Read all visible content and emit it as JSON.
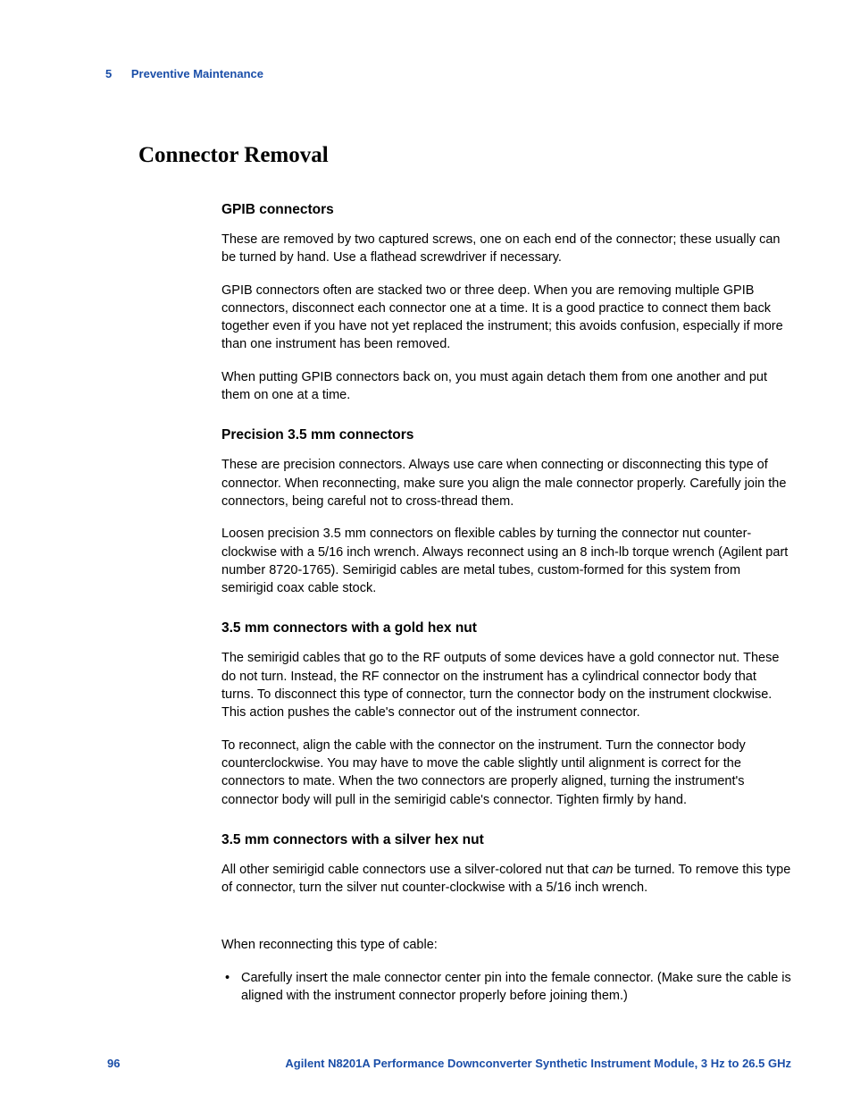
{
  "header": {
    "chapter_number": "5",
    "chapter_title": "Preventive Maintenance"
  },
  "title": "Connector Removal",
  "sections": {
    "gpib": {
      "heading": "GPIB connectors",
      "p1": "These are removed by two captured screws, one on each end of the connector; these usually can be turned by hand. Use a flathead screwdriver if necessary.",
      "p2": "GPIB connectors often are stacked two or three deep. When you are removing multiple GPIB connectors, disconnect each connector one at a time. It is a good practice to connect them back together even if you have not yet replaced the instrument; this avoids confusion, especially if more than one instrument has been removed.",
      "p3": "When putting GPIB connectors back on, you must again detach them from one another and put them on one at a time."
    },
    "precision": {
      "heading": "Precision 3.5 mm connectors",
      "p1": "These are precision connectors. Always use care when connecting or disconnecting this type of connector. When reconnecting, make sure you align the male connector properly. Carefully join the connectors, being careful not to cross-thread them.",
      "p2": "Loosen precision 3.5 mm connectors on flexible cables by turning the connector nut counter-clockwise with a 5/16 inch wrench. Always reconnect using an 8 inch-lb torque wrench (Agilent part number 8720-1765). Semirigid cables are metal tubes, custom-formed for this system from semirigid coax cable stock."
    },
    "gold": {
      "heading": "3.5 mm connectors with a gold hex nut",
      "p1": "The semirigid cables that go to the RF outputs of some devices have a gold connector nut. These do not turn. Instead, the RF connector on the instrument has a cylindrical connector body that turns. To disconnect this type of connector, turn the connector body on the instrument clockwise. This action pushes the cable's connector out of the instrument connector.",
      "p2": "To reconnect, align the cable with the connector on the instrument. Turn the connector body counterclockwise. You may have to move the cable slightly until alignment is correct for the connectors to mate. When the two connectors are properly aligned, turning the instrument's connector body will pull in the semirigid cable's connector. Tighten firmly by hand."
    },
    "silver": {
      "heading": "3.5 mm connectors with a silver hex nut",
      "p1_pre": "All other semirigid cable connectors use a silver-colored nut that ",
      "p1_em": "can",
      "p1_post": " be turned. To remove this type of connector, turn the silver nut counter-clockwise with a 5/16 inch wrench.",
      "p2": "When reconnecting this type of cable:",
      "bullet1": "Carefully insert the male connector center pin into the female connector. (Make sure the cable is aligned with the instrument connector properly before joining them.)"
    }
  },
  "footer": {
    "page_number": "96",
    "doc_title": "Agilent N8201A Performance Downconverter Synthetic Instrument Module, 3 Hz to 26.5 GHz"
  }
}
